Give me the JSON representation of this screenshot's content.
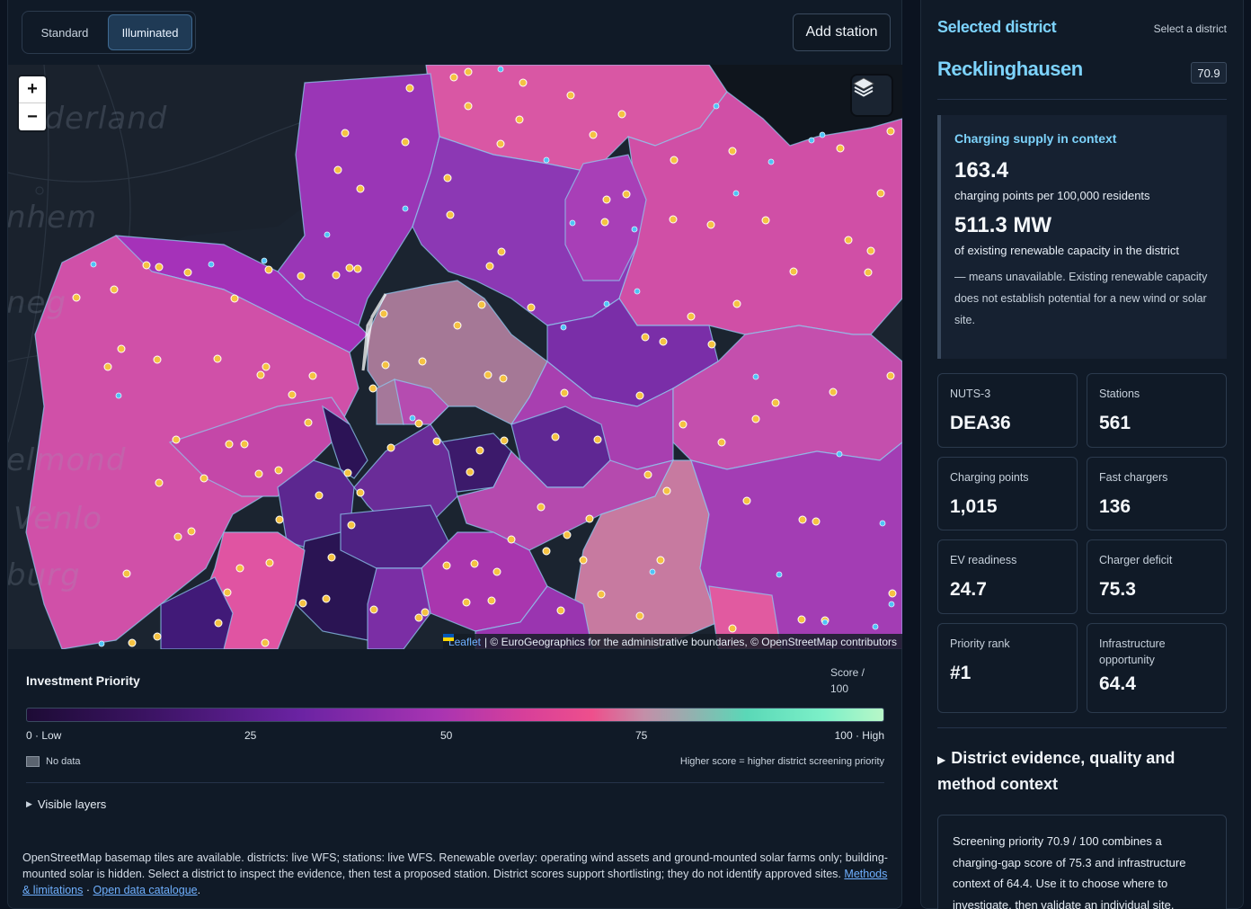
{
  "toolbar": {
    "modes": [
      "Standard",
      "Illuminated"
    ],
    "active_mode": "Illuminated",
    "add_station_label": "Add station"
  },
  "map": {
    "zoom_in": "+",
    "zoom_out": "−",
    "basemap_labels": [
      "lderland",
      "nhem",
      "neg",
      "elmond",
      "Venlo",
      "burg"
    ],
    "attribution_link": "Leaflet",
    "attribution_text": "| © EuroGeographics for the administrative boundaries, © OpenStreetMap contributors",
    "layers_icon": "layers-icon",
    "colors": {
      "water": "#0f151d",
      "land": "#1b2430",
      "border": "#8fc8ef",
      "station": "#f5c242",
      "renewable": "#4fc3f7",
      "selected_outline": "#ffffff"
    }
  },
  "legend": {
    "title": "Investment Priority",
    "unit": "Score / 100",
    "ticks": [
      "0 · Low",
      "25",
      "50",
      "75",
      "100 · High"
    ],
    "no_data": "No data",
    "higher": "Higher score = higher district screening priority",
    "visible_layers": "Visible layers"
  },
  "note": {
    "text": "OpenStreetMap basemap tiles are available. districts: live WFS; stations: live WFS. Renewable overlay: operating wind assets and ground-mounted solar farms only; building-mounted solar is hidden. Select a district to inspect the evidence, then test a proposed station. District scores support shortlisting; they do not identify approved sites.",
    "link1": "Methods & limitations",
    "sep": "·",
    "link2": "Open data catalogue",
    "end": "."
  },
  "panel": {
    "title": "Selected district",
    "hint": "Select a district",
    "district": "Recklinghausen",
    "score": "70.9",
    "context": {
      "title": "Charging supply in context",
      "points_value": "163.4",
      "points_label": "charging points per 100,000 residents",
      "mw_value": "511.3 MW",
      "mw_label": "of existing renewable capacity in the district",
      "note": "— means unavailable. Existing renewable capacity does not establish potential for a new wind or solar site."
    },
    "stats": [
      {
        "label": "NUTS-3",
        "value": "DEA36"
      },
      {
        "label": "Stations",
        "value": "561"
      },
      {
        "label": "Charging points",
        "value": "1,015"
      },
      {
        "label": "Fast chargers",
        "value": "136"
      },
      {
        "label": "EV readiness",
        "value": "24.7"
      },
      {
        "label": "Charger deficit",
        "value": "75.3"
      },
      {
        "label": "Priority rank",
        "value": "#1"
      },
      {
        "label": "Infrastructure opportunity",
        "value": "64.4"
      }
    ],
    "evidence_title": "District evidence, quality and method context",
    "summary": "Screening priority 70.9 / 100 combines a charging-gap score of 75.3 and infrastructure context of 64.4. Use it to choose where to investigate, then validate an individual site."
  }
}
